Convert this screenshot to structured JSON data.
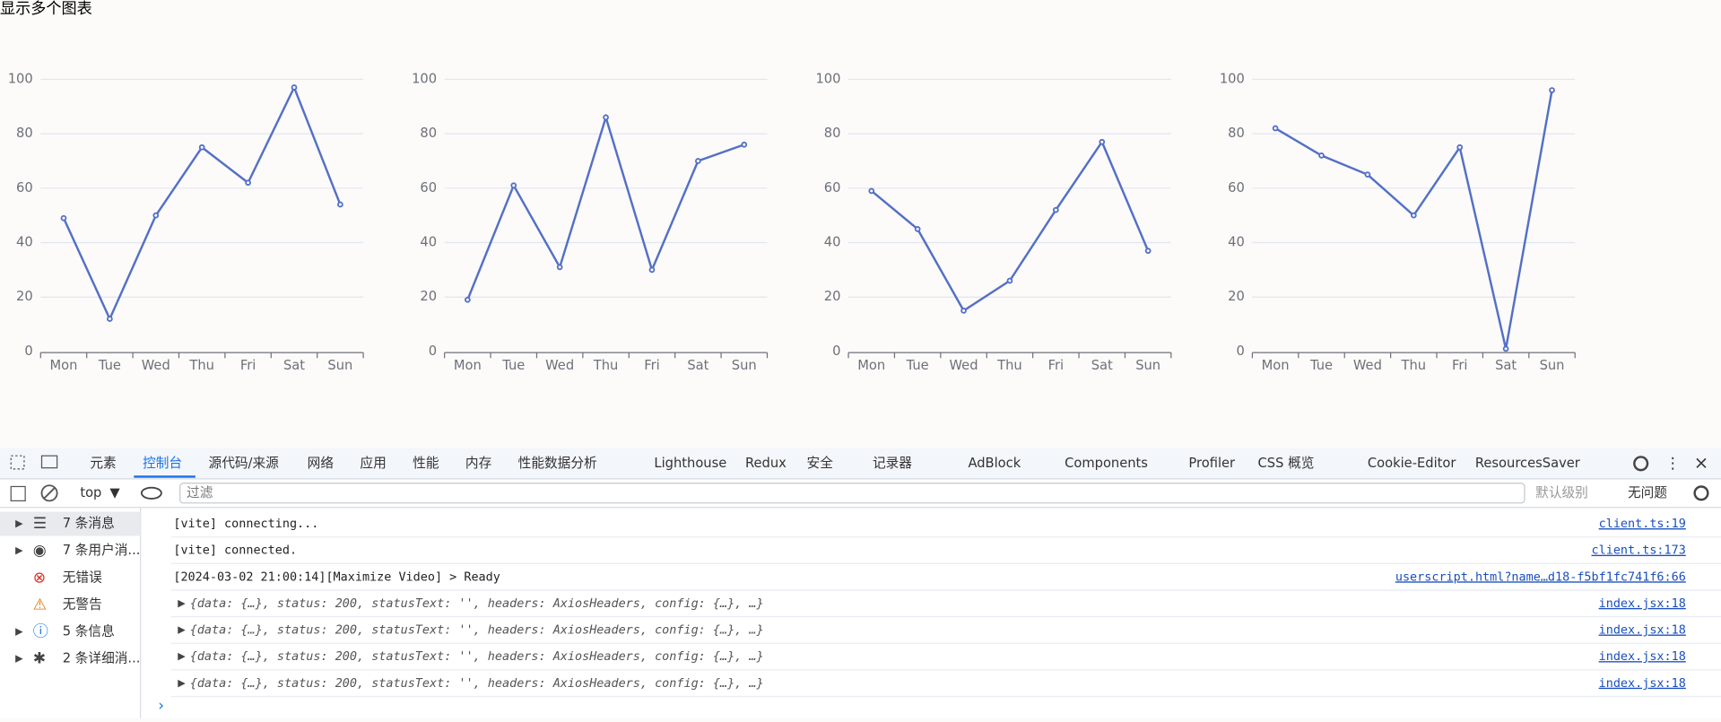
{
  "header": {
    "title": "显示多个图表"
  },
  "chart_data": [
    {
      "type": "line",
      "categories": [
        "Mon",
        "Tue",
        "Wed",
        "Thu",
        "Fri",
        "Sat",
        "Sun"
      ],
      "series": [
        {
          "color": "#5470c6",
          "values": [
            49,
            12,
            50,
            75,
            62,
            97,
            54
          ]
        }
      ],
      "ylim": [
        0,
        100
      ],
      "yticks": [
        0,
        20,
        40,
        60,
        80,
        100
      ],
      "grid": true
    },
    {
      "type": "line",
      "categories": [
        "Mon",
        "Tue",
        "Wed",
        "Thu",
        "Fri",
        "Sat",
        "Sun"
      ],
      "series": [
        {
          "color": "#5470c6",
          "values": [
            19,
            61,
            31,
            86,
            30,
            70,
            76
          ]
        }
      ],
      "ylim": [
        0,
        100
      ],
      "yticks": [
        0,
        20,
        40,
        60,
        80,
        100
      ],
      "grid": true
    },
    {
      "type": "line",
      "categories": [
        "Mon",
        "Tue",
        "Wed",
        "Thu",
        "Fri",
        "Sat",
        "Sun"
      ],
      "series": [
        {
          "color": "#5470c6",
          "values": [
            59,
            45,
            15,
            26,
            52,
            77,
            37
          ]
        }
      ],
      "ylim": [
        0,
        100
      ],
      "yticks": [
        0,
        20,
        40,
        60,
        80,
        100
      ],
      "grid": true
    },
    {
      "type": "line",
      "categories": [
        "Mon",
        "Tue",
        "Wed",
        "Thu",
        "Fri",
        "Sat",
        "Sun"
      ],
      "series": [
        {
          "color": "#5470c6",
          "values": [
            82,
            72,
            65,
            50,
            75,
            1,
            96
          ]
        }
      ],
      "ylim": [
        0,
        100
      ],
      "yticks": [
        0,
        20,
        40,
        60,
        80,
        100
      ],
      "grid": true
    }
  ],
  "devtools": {
    "tabs": [
      "元素",
      "控制台",
      "源代码/来源",
      "网络",
      "应用",
      "性能",
      "内存",
      "性能数据分析",
      "Lighthouse",
      "Redux",
      "安全",
      "记录器",
      "AdBlock",
      "Components",
      "Profiler",
      "CSS 概览",
      "Cookie-Editor",
      "ResourcesSaver"
    ],
    "toolbar": {
      "context": "top",
      "filter": "过滤",
      "level": "默认级别",
      "issues": "无问题"
    },
    "sidebar": [
      "7 条消息",
      "7 条用户消...",
      "无错误",
      "无警告",
      "5 条信息",
      "2 条详细消..."
    ],
    "messages": [
      {
        "text": "[vite] connecting...",
        "source": "client.ts:19"
      },
      {
        "text": "[vite] connected.",
        "source": "client.ts:173"
      },
      {
        "text": "[2024-03-02 21:00:14][Maximize Video] > Ready",
        "source": "userscript.html?name…d18-f5bf1fc741f6:66"
      },
      {
        "text": "{data: {…}, status: 200, statusText: '', headers: AxiosHeaders, config: {…}, …}",
        "source": "index.jsx:18"
      },
      {
        "text": "{data: {…}, status: 200, statusText: '', headers: AxiosHeaders, config: {…}, …}",
        "source": "index.jsx:18"
      },
      {
        "text": "{data: {…}, status: 200, statusText: '', headers: AxiosHeaders, config: {…}, …}",
        "source": "index.jsx:18"
      },
      {
        "text": "{data: {…}, status: 200, statusText: '', headers: AxiosHeaders, config: {…}, …}",
        "source": "index.jsx:18"
      }
    ]
  }
}
